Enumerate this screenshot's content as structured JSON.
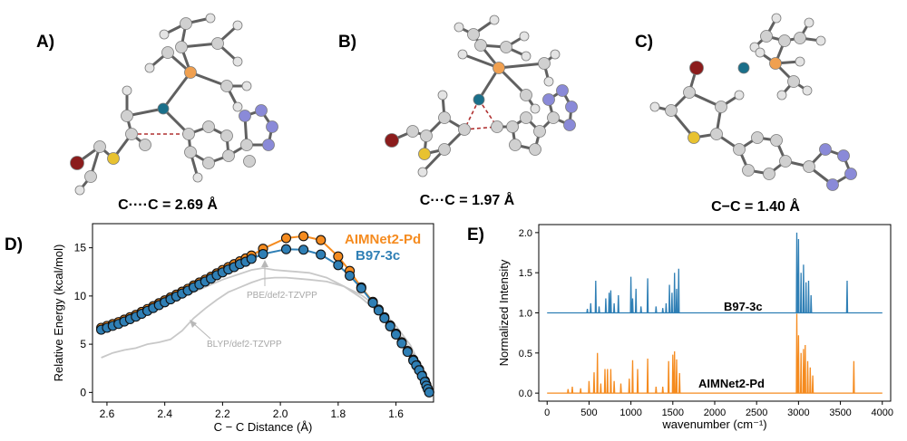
{
  "panels": {
    "A": {
      "label": "A)",
      "caption": "C····C = 2.69 Å"
    },
    "B": {
      "label": "B)",
      "caption": "C···C = 1.97 Å"
    },
    "C": {
      "label": "C)",
      "caption": "C−C = 1.40 Å"
    },
    "D": {
      "label": "D)"
    },
    "E": {
      "label": "E)"
    }
  },
  "colors": {
    "aimnet": "#f58b1f",
    "b97": "#2f7fb5",
    "dft": "#c8c8c8",
    "marker_edge": "#111111",
    "atom_c": "#d0d0d0",
    "atom_pd": "#1a6f8a",
    "atom_p": "#f0a050",
    "atom_br": "#8b1c1c",
    "atom_s": "#e8c230",
    "atom_n": "#8a8ad8",
    "bond_dashed": "#b03030"
  },
  "chart_data": [
    {
      "type": "line",
      "panel": "D",
      "xlabel": "C − C Distance (Å)",
      "ylabel": "Relative Energy (kcal/mol)",
      "xlim": [
        2.65,
        1.47
      ],
      "ylim": [
        -1,
        17.5
      ],
      "x_inverted": true,
      "xticks": [
        2.6,
        2.4,
        2.2,
        2.0,
        1.8,
        1.6
      ],
      "xtick_labels": [
        "2.6",
        "2.4",
        "2.2",
        "2.0",
        "1.8",
        "1.6"
      ],
      "yticks": [
        0,
        5,
        10,
        15
      ],
      "ytick_labels": [
        "0",
        "5",
        "10",
        "15"
      ],
      "grid": false,
      "legend": "top-right",
      "series": [
        {
          "name": "AIMNet2-Pd",
          "markers": true,
          "x": [
            2.62,
            2.6,
            2.58,
            2.56,
            2.54,
            2.52,
            2.5,
            2.48,
            2.46,
            2.44,
            2.42,
            2.4,
            2.38,
            2.36,
            2.34,
            2.32,
            2.3,
            2.28,
            2.26,
            2.24,
            2.22,
            2.2,
            2.18,
            2.16,
            2.14,
            2.12,
            2.1,
            2.06,
            1.98,
            1.92,
            1.86,
            1.8,
            1.76,
            1.72,
            1.68,
            1.66,
            1.64,
            1.62,
            1.6,
            1.58,
            1.56,
            1.54,
            1.53,
            1.52,
            1.51,
            1.5,
            1.495,
            1.49,
            1.485
          ],
          "y": [
            6.7,
            6.9,
            7.1,
            7.3,
            7.55,
            7.8,
            8.05,
            8.35,
            8.65,
            8.95,
            9.25,
            9.55,
            9.85,
            10.15,
            10.45,
            10.75,
            11.1,
            11.4,
            11.7,
            12.0,
            12.35,
            12.7,
            13.0,
            13.3,
            13.6,
            13.9,
            14.2,
            14.9,
            16.0,
            16.2,
            15.8,
            14.1,
            12.6,
            10.9,
            9.4,
            8.6,
            7.8,
            6.95,
            6.1,
            5.2,
            4.3,
            3.4,
            2.9,
            2.4,
            1.8,
            1.2,
            0.8,
            0.4,
            0.05
          ]
        },
        {
          "name": "B97-3c",
          "markers": true,
          "x": [
            2.62,
            2.6,
            2.58,
            2.56,
            2.54,
            2.52,
            2.5,
            2.48,
            2.46,
            2.44,
            2.42,
            2.4,
            2.38,
            2.36,
            2.34,
            2.32,
            2.3,
            2.28,
            2.26,
            2.24,
            2.22,
            2.2,
            2.18,
            2.16,
            2.14,
            2.12,
            2.1,
            2.06,
            1.98,
            1.92,
            1.86,
            1.8,
            1.76,
            1.72,
            1.68,
            1.66,
            1.64,
            1.62,
            1.6,
            1.58,
            1.56,
            1.54,
            1.53,
            1.52,
            1.51,
            1.5,
            1.495,
            1.49,
            1.485
          ],
          "y": [
            6.5,
            6.7,
            6.9,
            7.1,
            7.35,
            7.6,
            7.85,
            8.15,
            8.45,
            8.75,
            9.05,
            9.35,
            9.65,
            9.95,
            10.25,
            10.55,
            10.9,
            11.2,
            11.5,
            11.8,
            12.15,
            12.45,
            12.75,
            13.0,
            13.3,
            13.55,
            13.85,
            14.35,
            14.85,
            14.8,
            14.3,
            13.2,
            12.1,
            10.8,
            9.3,
            8.5,
            7.7,
            6.85,
            6.0,
            5.1,
            4.2,
            3.3,
            2.8,
            2.3,
            1.7,
            1.1,
            0.7,
            0.35,
            0.0
          ]
        },
        {
          "name": "PBE/def2-TZVPP",
          "markers": false,
          "x": [
            2.62,
            2.5,
            2.4,
            2.3,
            2.2,
            2.1,
            2.06,
            2.02,
            1.98,
            1.94,
            1.9,
            1.84,
            1.78,
            1.72,
            1.66,
            1.6,
            1.55,
            1.52,
            1.5,
            1.485
          ],
          "y": [
            6.3,
            7.6,
            9.0,
            10.4,
            11.7,
            12.7,
            12.9,
            12.7,
            12.6,
            12.5,
            12.4,
            11.9,
            11.0,
            9.8,
            8.3,
            6.5,
            4.5,
            2.8,
            1.2,
            0.0
          ]
        },
        {
          "name": "BLYP/def2-TZVPP",
          "markers": false,
          "x": [
            2.62,
            2.58,
            2.54,
            2.5,
            2.46,
            2.42,
            2.38,
            2.34,
            2.3,
            2.26,
            2.22,
            2.18,
            2.14,
            2.1,
            2.06,
            2.02,
            1.98,
            1.94,
            1.9,
            1.84,
            1.78,
            1.72,
            1.66,
            1.6,
            1.55,
            1.52,
            1.5,
            1.485
          ],
          "y": [
            3.6,
            4.1,
            4.4,
            4.6,
            5.0,
            5.2,
            5.5,
            6.4,
            7.7,
            8.7,
            9.6,
            10.4,
            10.9,
            11.4,
            11.8,
            11.9,
            11.9,
            11.8,
            11.7,
            11.5,
            11.0,
            10.1,
            8.8,
            6.9,
            4.9,
            3.0,
            1.3,
            0.0
          ]
        }
      ],
      "annotations": [
        "PBE/def2-TZVPP",
        "BLYP/def2-TZVPP"
      ]
    },
    {
      "type": "line",
      "panel": "E",
      "xlabel": "wavenumber (cm⁻¹)",
      "ylabel": "Normalized Intensity",
      "xlim": [
        -100,
        4100
      ],
      "ylim": [
        -0.1,
        2.1
      ],
      "xticks": [
        0,
        500,
        1000,
        1500,
        2000,
        2500,
        3000,
        3500,
        4000
      ],
      "xtick_labels": [
        "0",
        "500",
        "1000",
        "1500",
        "2000",
        "2500",
        "3000",
        "3500",
        "4000"
      ],
      "yticks": [
        0.0,
        0.5,
        1.0,
        1.5,
        2.0
      ],
      "ytick_labels": [
        "0.0",
        "0.5",
        "1.0",
        "1.5",
        "2.0"
      ],
      "grid": false,
      "series": [
        {
          "name": "B97-3c",
          "baseline": 1.0,
          "peaks": [
            [
              480,
              0.05
            ],
            [
              520,
              0.12
            ],
            [
              580,
              0.4
            ],
            [
              620,
              0.08
            ],
            [
              700,
              0.18
            ],
            [
              740,
              0.25
            ],
            [
              760,
              0.28
            ],
            [
              800,
              0.12
            ],
            [
              850,
              0.22
            ],
            [
              1000,
              0.45
            ],
            [
              1020,
              0.18
            ],
            [
              1060,
              0.3
            ],
            [
              1120,
              0.08
            ],
            [
              1200,
              0.43
            ],
            [
              1300,
              0.08
            ],
            [
              1380,
              0.06
            ],
            [
              1420,
              0.12
            ],
            [
              1460,
              0.35
            ],
            [
              1490,
              0.25
            ],
            [
              1520,
              0.5
            ],
            [
              1545,
              0.3
            ],
            [
              1570,
              0.55
            ],
            [
              2980,
              1.0
            ],
            [
              3000,
              0.92
            ],
            [
              3030,
              0.5
            ],
            [
              3060,
              0.6
            ],
            [
              3090,
              0.38
            ],
            [
              3120,
              0.4
            ],
            [
              3150,
              0.22
            ],
            [
              3580,
              0.4
            ]
          ]
        },
        {
          "name": "AIMNet2-Pd",
          "baseline": 0.0,
          "peaks": [
            [
              250,
              0.05
            ],
            [
              300,
              0.08
            ],
            [
              400,
              0.06
            ],
            [
              500,
              0.15
            ],
            [
              560,
              0.26
            ],
            [
              600,
              0.5
            ],
            [
              640,
              0.12
            ],
            [
              690,
              0.3
            ],
            [
              720,
              0.3
            ],
            [
              760,
              0.3
            ],
            [
              800,
              0.15
            ],
            [
              880,
              0.12
            ],
            [
              980,
              0.18
            ],
            [
              1020,
              0.41
            ],
            [
              1080,
              0.3
            ],
            [
              1200,
              0.43
            ],
            [
              1300,
              0.08
            ],
            [
              1380,
              0.08
            ],
            [
              1450,
              0.4
            ],
            [
              1500,
              0.48
            ],
            [
              1520,
              0.52
            ],
            [
              1545,
              0.42
            ],
            [
              1580,
              0.25
            ],
            [
              2980,
              0.99
            ],
            [
              3000,
              0.72
            ],
            [
              3030,
              0.5
            ],
            [
              3060,
              0.55
            ],
            [
              3080,
              0.6
            ],
            [
              3110,
              0.4
            ],
            [
              3140,
              0.32
            ],
            [
              3170,
              0.22
            ],
            [
              3660,
              0.4
            ]
          ]
        }
      ]
    }
  ]
}
